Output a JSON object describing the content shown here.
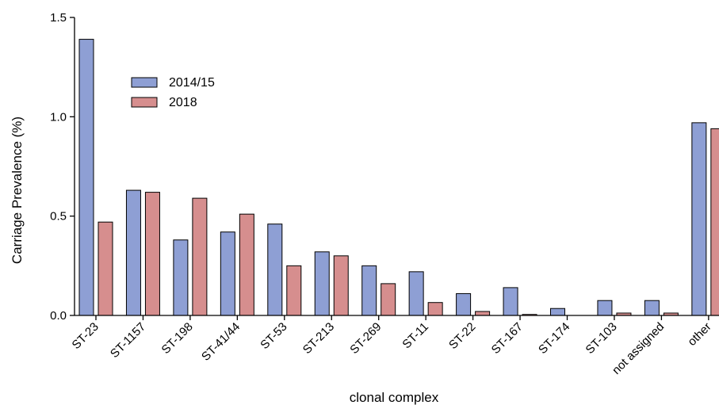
{
  "chart_data": {
    "type": "bar",
    "xlabel": "clonal complex",
    "ylabel": "Carriage Prevalence (%)",
    "ylim": [
      0,
      1.5
    ],
    "yticks": [
      "0.0",
      "0.5",
      "1.0",
      "1.5"
    ],
    "ytick_values": [
      0,
      0.5,
      1.0,
      1.5
    ],
    "categories": [
      "ST-23",
      "ST-1157",
      "ST-198",
      "ST-41/44",
      "ST-53",
      "ST-213",
      "ST-269",
      "ST-11",
      "ST-22",
      "ST-167",
      "ST-174",
      "ST-103",
      "not assigned",
      "other"
    ],
    "series": [
      {
        "name": "2014/15",
        "color": "#8e9fd4",
        "values": [
          1.39,
          0.63,
          0.38,
          0.42,
          0.46,
          0.32,
          0.25,
          0.22,
          0.11,
          0.14,
          0.035,
          0.075,
          0.075,
          0.97
        ]
      },
      {
        "name": "2018",
        "color": "#d68e8e",
        "values": [
          0.47,
          0.62,
          0.59,
          0.51,
          0.25,
          0.3,
          0.16,
          0.065,
          0.02,
          0.005,
          0,
          0.012,
          0.012,
          0.94
        ]
      }
    ],
    "legend_position": "top-left",
    "grid": false
  }
}
